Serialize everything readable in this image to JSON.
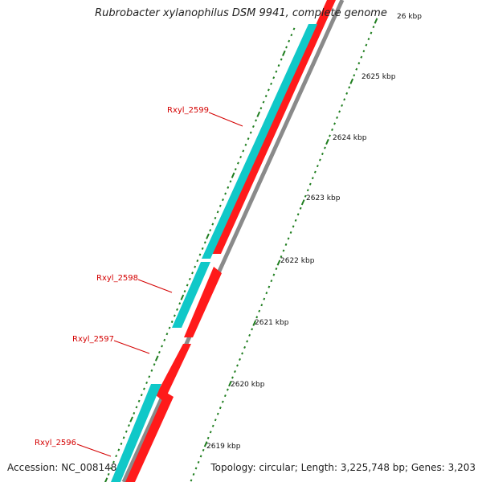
{
  "title": "Rubrobacter xylanophilus DSM 9941, complete genome",
  "footer": {
    "accession": "Accession: NC_008148",
    "summary": "Topology: circular; Length: 3,225,748 bp; Genes: 3,203"
  },
  "colors": {
    "forward_strand": "#10c8c8",
    "reverse_strand": "#ff1a1a",
    "backbone": "#888888",
    "ticks": "#1e7d1e",
    "gene_label": "#d40000"
  },
  "ruler": {
    "tick_labels": [
      "26 kbp",
      "2625 kbp",
      "2624 kbp",
      "2623 kbp",
      "2622 kbp",
      "2621 kbp",
      "2620 kbp",
      "2619 kbp"
    ]
  },
  "genes": [
    {
      "label": "Rxyl_2599"
    },
    {
      "label": "Rxyl_2598"
    },
    {
      "label": "Rxyl_2597"
    },
    {
      "label": "Rxyl_2596"
    }
  ]
}
